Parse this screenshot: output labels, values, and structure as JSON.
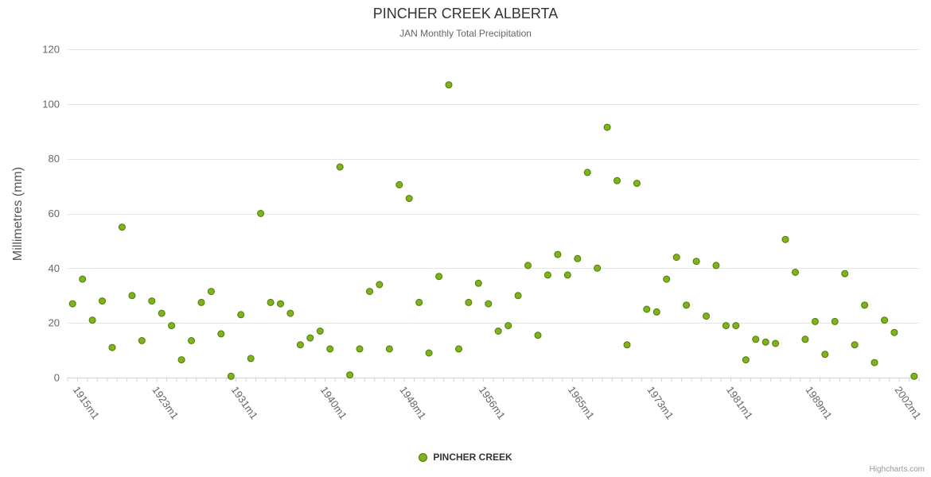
{
  "title": "PINCHER CREEK ALBERTA",
  "subtitle": "JAN Monthly Total Precipitation",
  "y_axis_title": "Millimetres (mm)",
  "legend": {
    "label": "PINCHER CREEK"
  },
  "credits": "Highcharts.com",
  "chart_data": {
    "type": "scatter",
    "title": "PINCHER CREEK ALBERTA",
    "subtitle": "JAN Monthly Total Precipitation",
    "xlabel": "",
    "ylabel": "Millimetres (mm)",
    "ylim": [
      0,
      120
    ],
    "yticks": [
      0,
      20,
      40,
      60,
      80,
      100,
      120
    ],
    "grid": true,
    "legend_position": "bottom-center",
    "marker_color": "#7db31c",
    "marker_line_color": "#517a06",
    "n_categories": 86,
    "x_ticks": [
      {
        "index": 0,
        "label": "1915m1"
      },
      {
        "index": 8,
        "label": "1923m1"
      },
      {
        "index": 16,
        "label": "1931m1"
      },
      {
        "index": 25,
        "label": "1940m1"
      },
      {
        "index": 33,
        "label": "1948m1"
      },
      {
        "index": 41,
        "label": "1956m1"
      },
      {
        "index": 50,
        "label": "1965m1"
      },
      {
        "index": 58,
        "label": "1973m1"
      },
      {
        "index": 66,
        "label": "1981m1"
      },
      {
        "index": 74,
        "label": "1989m1"
      },
      {
        "index": 83,
        "label": "2002m1"
      }
    ],
    "series": [
      {
        "name": "PINCHER CREEK",
        "points": [
          [
            0,
            27
          ],
          [
            1,
            36
          ],
          [
            2,
            21
          ],
          [
            3,
            28
          ],
          [
            4,
            11
          ],
          [
            5,
            55
          ],
          [
            6,
            30
          ],
          [
            7,
            13.5
          ],
          [
            8,
            28
          ],
          [
            9,
            23.5
          ],
          [
            10,
            19
          ],
          [
            11,
            6.5
          ],
          [
            12,
            13.5
          ],
          [
            13,
            27.5
          ],
          [
            14,
            31.5
          ],
          [
            15,
            16
          ],
          [
            16,
            0.5
          ],
          [
            17,
            23
          ],
          [
            18,
            7
          ],
          [
            19,
            60
          ],
          [
            20,
            27.5
          ],
          [
            21,
            27
          ],
          [
            22,
            23.5
          ],
          [
            23,
            12
          ],
          [
            24,
            14.5
          ],
          [
            25,
            17
          ],
          [
            26,
            10.5
          ],
          [
            27,
            77
          ],
          [
            28,
            1
          ],
          [
            29,
            10.5
          ],
          [
            30,
            31.5
          ],
          [
            31,
            34
          ],
          [
            32,
            10.5
          ],
          [
            33,
            70.5
          ],
          [
            34,
            65.5
          ],
          [
            35,
            27.5
          ],
          [
            36,
            9
          ],
          [
            37,
            37
          ],
          [
            38,
            107
          ],
          [
            39,
            10.5
          ],
          [
            40,
            27.5
          ],
          [
            41,
            34.5
          ],
          [
            42,
            27
          ],
          [
            43,
            17
          ],
          [
            44,
            19
          ],
          [
            45,
            30
          ],
          [
            46,
            41
          ],
          [
            47,
            15.5
          ],
          [
            48,
            37.5
          ],
          [
            49,
            45
          ],
          [
            50,
            37.5
          ],
          [
            51,
            43.5
          ],
          [
            52,
            75
          ],
          [
            53,
            40
          ],
          [
            54,
            91.5
          ],
          [
            55,
            72
          ],
          [
            56,
            12
          ],
          [
            57,
            71
          ],
          [
            58,
            25
          ],
          [
            59,
            24
          ],
          [
            60,
            36
          ],
          [
            61,
            44
          ],
          [
            62,
            26.5
          ],
          [
            63,
            42.5
          ],
          [
            64,
            22.5
          ],
          [
            65,
            41
          ],
          [
            66,
            19
          ],
          [
            67,
            19
          ],
          [
            68,
            6.5
          ],
          [
            69,
            14
          ],
          [
            70,
            13
          ],
          [
            71,
            12.5
          ],
          [
            72,
            50.5
          ],
          [
            73,
            38.5
          ],
          [
            74,
            14
          ],
          [
            75,
            20.5
          ],
          [
            76,
            8.5
          ],
          [
            77,
            20.5
          ],
          [
            78,
            38
          ],
          [
            79,
            12
          ],
          [
            80,
            26.5
          ],
          [
            81,
            5.5
          ],
          [
            82,
            21
          ],
          [
            83,
            16.5
          ],
          [
            85,
            0.5
          ]
        ]
      }
    ]
  }
}
